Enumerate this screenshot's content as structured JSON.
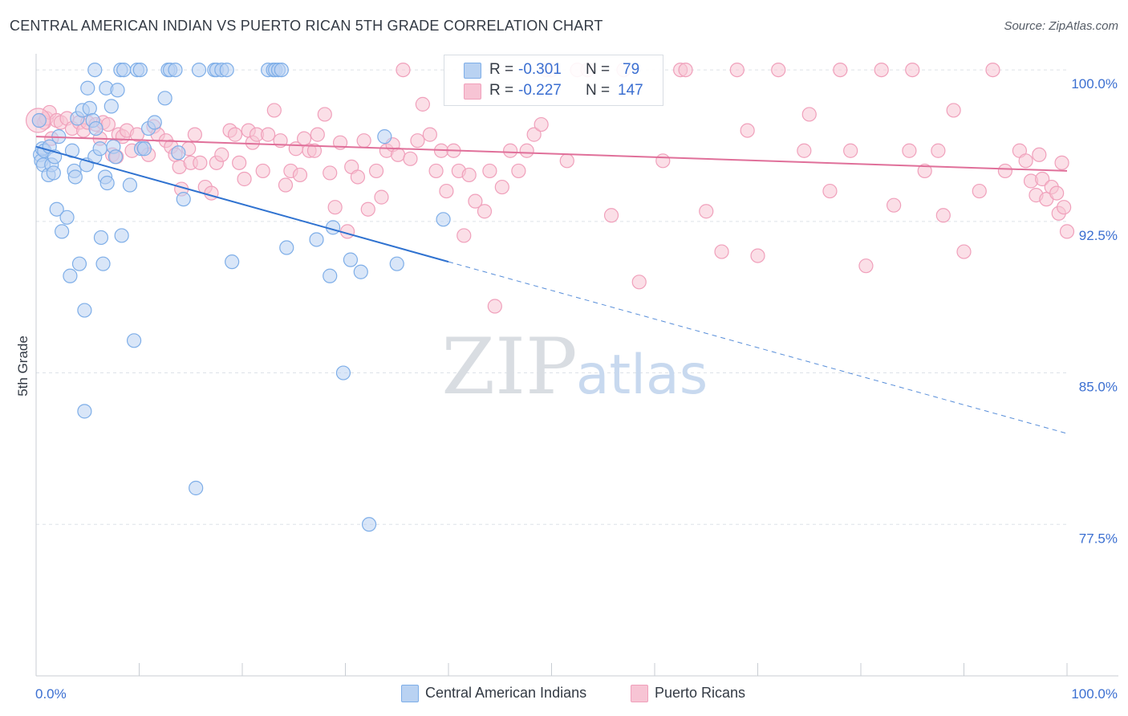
{
  "title": "CENTRAL AMERICAN INDIAN VS PUERTO RICAN 5TH GRADE CORRELATION CHART",
  "source": "Source: ZipAtlas.com",
  "watermark": {
    "zip": "ZIP",
    "atlas": "atlas"
  },
  "colors": {
    "blue": "#7eaee8",
    "blue_fill": "#b9d2f2",
    "blue_line": "#2f72d0",
    "pink": "#f0a0bb",
    "pink_fill": "#f7c4d4",
    "pink_line": "#e0709a",
    "accent_text": "#3b6fd1",
    "grid": "#dde2e8"
  },
  "legend": {
    "r_label": "R =",
    "n_label": "N =",
    "rows": [
      {
        "r": "-0.301",
        "n": "79",
        "series": "blue"
      },
      {
        "r": "-0.227",
        "n": "147",
        "series": "pink"
      }
    ]
  },
  "chart_data": {
    "type": "scatter",
    "xlabel": "",
    "ylabel": "5th Grade",
    "xlim": [
      0,
      100
    ],
    "ylim": [
      70,
      100
    ],
    "x_tick_labels": [
      "0.0%",
      "100.0%"
    ],
    "y_ticks": [
      77.5,
      85.0,
      92.5,
      100.0
    ],
    "y_tick_labels": [
      "77.5%",
      "85.0%",
      "92.5%",
      "100.0%"
    ],
    "grid": true,
    "legend_position": "top-center",
    "series": [
      {
        "name": "Central American Indians",
        "color": "blue",
        "trend": {
          "x0": 0,
          "y0": 96.2,
          "x1": 40,
          "y1": 90.5,
          "dash_to_x": 100,
          "dash_to_y": 82.0
        },
        "points": [
          [
            0.3,
            97.5
          ],
          [
            0.4,
            95.8
          ],
          [
            0.5,
            95.5
          ],
          [
            0.6,
            96.1
          ],
          [
            0.7,
            95.3
          ],
          [
            0.8,
            96.0
          ],
          [
            1.2,
            94.8
          ],
          [
            1.3,
            96.2
          ],
          [
            1.5,
            95.3
          ],
          [
            1.7,
            94.9
          ],
          [
            1.8,
            95.7
          ],
          [
            2.0,
            93.1
          ],
          [
            2.2,
            96.7
          ],
          [
            2.5,
            92.0
          ],
          [
            3.0,
            92.7
          ],
          [
            3.3,
            89.8
          ],
          [
            3.5,
            96.0
          ],
          [
            3.7,
            95.0
          ],
          [
            3.8,
            94.7
          ],
          [
            4.0,
            97.6
          ],
          [
            4.2,
            90.4
          ],
          [
            4.5,
            98.0
          ],
          [
            4.7,
            83.1
          ],
          [
            4.9,
            95.3
          ],
          [
            4.7,
            88.1
          ],
          [
            5.0,
            99.1
          ],
          [
            5.2,
            98.1
          ],
          [
            5.5,
            97.5
          ],
          [
            5.7,
            100.0
          ],
          [
            5.7,
            95.7
          ],
          [
            5.8,
            97.1
          ],
          [
            6.2,
            96.1
          ],
          [
            6.3,
            91.7
          ],
          [
            6.5,
            90.4
          ],
          [
            6.8,
            99.1
          ],
          [
            6.7,
            94.7
          ],
          [
            6.9,
            94.4
          ],
          [
            7.3,
            98.2
          ],
          [
            7.5,
            96.2
          ],
          [
            7.7,
            95.7
          ],
          [
            7.9,
            99.0
          ],
          [
            8.3,
            91.8
          ],
          [
            8.2,
            100.0
          ],
          [
            8.5,
            100.0
          ],
          [
            9.1,
            94.3
          ],
          [
            9.5,
            86.6
          ],
          [
            9.8,
            100.0
          ],
          [
            10.1,
            100.0
          ],
          [
            10.2,
            96.1
          ],
          [
            10.5,
            96.1
          ],
          [
            10.9,
            97.1
          ],
          [
            11.5,
            97.4
          ],
          [
            12.5,
            98.6
          ],
          [
            12.8,
            100.0
          ],
          [
            13.0,
            100.0
          ],
          [
            13.5,
            100.0
          ],
          [
            13.8,
            95.9
          ],
          [
            14.3,
            93.6
          ],
          [
            15.5,
            79.3
          ],
          [
            15.8,
            100.0
          ],
          [
            17.3,
            100.0
          ],
          [
            17.5,
            100.0
          ],
          [
            18.0,
            100.0
          ],
          [
            18.5,
            100.0
          ],
          [
            19.0,
            90.5
          ],
          [
            22.5,
            100.0
          ],
          [
            23.0,
            100.0
          ],
          [
            23.2,
            100.0
          ],
          [
            23.5,
            100.0
          ],
          [
            23.8,
            100.0
          ],
          [
            24.3,
            91.2
          ],
          [
            27.2,
            91.6
          ],
          [
            28.5,
            89.8
          ],
          [
            28.8,
            92.2
          ],
          [
            29.8,
            85.0
          ],
          [
            30.5,
            90.6
          ],
          [
            31.5,
            90.0
          ],
          [
            32.3,
            77.5
          ],
          [
            33.8,
            96.7
          ],
          [
            35.0,
            90.4
          ],
          [
            39.5,
            92.6
          ]
        ]
      },
      {
        "name": "Puerto Ricans",
        "color": "pink",
        "trend": {
          "x0": 0,
          "y0": 96.7,
          "x1": 100,
          "y1": 95.0
        },
        "points": [
          [
            0.3,
            97.5
          ],
          [
            0.8,
            97.4
          ],
          [
            1.0,
            97.6
          ],
          [
            1.3,
            97.9
          ],
          [
            1.5,
            96.6
          ],
          [
            2.0,
            97.5
          ],
          [
            2.4,
            97.4
          ],
          [
            3.0,
            97.6
          ],
          [
            3.5,
            97.1
          ],
          [
            4.2,
            97.4
          ],
          [
            4.6,
            97.0
          ],
          [
            5.0,
            97.4
          ],
          [
            5.8,
            97.3
          ],
          [
            6.2,
            96.6
          ],
          [
            6.5,
            97.4
          ],
          [
            7.0,
            97.3
          ],
          [
            7.4,
            95.8
          ],
          [
            7.8,
            95.7
          ],
          [
            8.0,
            96.8
          ],
          [
            8.4,
            96.7
          ],
          [
            8.8,
            97.0
          ],
          [
            9.3,
            96.0
          ],
          [
            9.8,
            96.8
          ],
          [
            10.4,
            96.2
          ],
          [
            10.9,
            95.8
          ],
          [
            11.4,
            97.2
          ],
          [
            11.8,
            96.8
          ],
          [
            12.6,
            96.5
          ],
          [
            13.1,
            96.2
          ],
          [
            13.5,
            95.8
          ],
          [
            13.9,
            95.2
          ],
          [
            14.1,
            94.1
          ],
          [
            14.8,
            96.1
          ],
          [
            15.0,
            95.4
          ],
          [
            15.4,
            96.8
          ],
          [
            15.9,
            95.4
          ],
          [
            16.4,
            94.2
          ],
          [
            17.0,
            93.9
          ],
          [
            17.5,
            95.4
          ],
          [
            18.0,
            95.8
          ],
          [
            18.8,
            97.0
          ],
          [
            19.3,
            96.8
          ],
          [
            19.7,
            95.4
          ],
          [
            20.2,
            94.6
          ],
          [
            20.6,
            97.0
          ],
          [
            21.0,
            96.4
          ],
          [
            21.4,
            96.8
          ],
          [
            22.0,
            95.0
          ],
          [
            22.5,
            96.8
          ],
          [
            23.1,
            98.0
          ],
          [
            23.7,
            96.5
          ],
          [
            24.2,
            94.3
          ],
          [
            24.7,
            95.0
          ],
          [
            25.2,
            96.1
          ],
          [
            25.6,
            94.8
          ],
          [
            26.0,
            96.6
          ],
          [
            26.5,
            96.0
          ],
          [
            27.0,
            96.0
          ],
          [
            27.3,
            96.8
          ],
          [
            28.0,
            97.8
          ],
          [
            28.5,
            94.9
          ],
          [
            29.0,
            93.2
          ],
          [
            29.5,
            96.4
          ],
          [
            30.2,
            92.0
          ],
          [
            30.6,
            95.2
          ],
          [
            31.2,
            94.7
          ],
          [
            31.8,
            96.5
          ],
          [
            32.2,
            93.1
          ],
          [
            33.0,
            95.0
          ],
          [
            33.5,
            93.7
          ],
          [
            34.0,
            96.0
          ],
          [
            34.6,
            96.3
          ],
          [
            35.1,
            95.8
          ],
          [
            35.6,
            100.0
          ],
          [
            36.3,
            95.6
          ],
          [
            37.0,
            96.5
          ],
          [
            37.5,
            98.3
          ],
          [
            38.2,
            96.8
          ],
          [
            38.8,
            95.0
          ],
          [
            39.3,
            96.0
          ],
          [
            39.8,
            94.0
          ],
          [
            40.5,
            96.0
          ],
          [
            41.0,
            95.0
          ],
          [
            41.5,
            91.8
          ],
          [
            42.0,
            94.8
          ],
          [
            42.6,
            93.5
          ],
          [
            43.5,
            93.0
          ],
          [
            44.0,
            95.0
          ],
          [
            44.5,
            88.3
          ],
          [
            45.2,
            94.2
          ],
          [
            46.0,
            96.0
          ],
          [
            46.8,
            95.0
          ],
          [
            47.6,
            96.0
          ],
          [
            48.3,
            96.8
          ],
          [
            49.0,
            97.3
          ],
          [
            49.5,
            100.0
          ],
          [
            50.0,
            100.0
          ],
          [
            51.5,
            95.5
          ],
          [
            52.5,
            100.0
          ],
          [
            53.5,
            100.0
          ],
          [
            55.8,
            92.8
          ],
          [
            57.0,
            100.0
          ],
          [
            58.5,
            89.5
          ],
          [
            60.8,
            95.5
          ],
          [
            62.5,
            100.0
          ],
          [
            63.0,
            100.0
          ],
          [
            65.0,
            93.0
          ],
          [
            66.5,
            91.0
          ],
          [
            68.0,
            100.0
          ],
          [
            69.0,
            97.0
          ],
          [
            70.0,
            90.8
          ],
          [
            72.0,
            100.0
          ],
          [
            74.5,
            96.0
          ],
          [
            75.0,
            97.8
          ],
          [
            77.0,
            94.0
          ],
          [
            78.0,
            100.0
          ],
          [
            79.0,
            96.0
          ],
          [
            80.5,
            90.3
          ],
          [
            82.0,
            100.0
          ],
          [
            83.2,
            93.3
          ],
          [
            84.7,
            96.0
          ],
          [
            85.0,
            100.0
          ],
          [
            86.2,
            95.0
          ],
          [
            87.5,
            96.0
          ],
          [
            88.0,
            92.8
          ],
          [
            89.0,
            98.0
          ],
          [
            90.0,
            91.0
          ],
          [
            91.5,
            94.0
          ],
          [
            92.8,
            100.0
          ],
          [
            94.0,
            95.0
          ],
          [
            95.4,
            96.0
          ],
          [
            96.0,
            95.5
          ],
          [
            96.5,
            94.5
          ],
          [
            97.0,
            93.8
          ],
          [
            97.3,
            95.8
          ],
          [
            97.6,
            94.6
          ],
          [
            98.0,
            93.6
          ],
          [
            98.5,
            94.2
          ],
          [
            99.0,
            93.9
          ],
          [
            99.2,
            92.9
          ],
          [
            99.5,
            95.4
          ],
          [
            99.7,
            93.2
          ],
          [
            100.0,
            92.0
          ]
        ]
      }
    ]
  }
}
